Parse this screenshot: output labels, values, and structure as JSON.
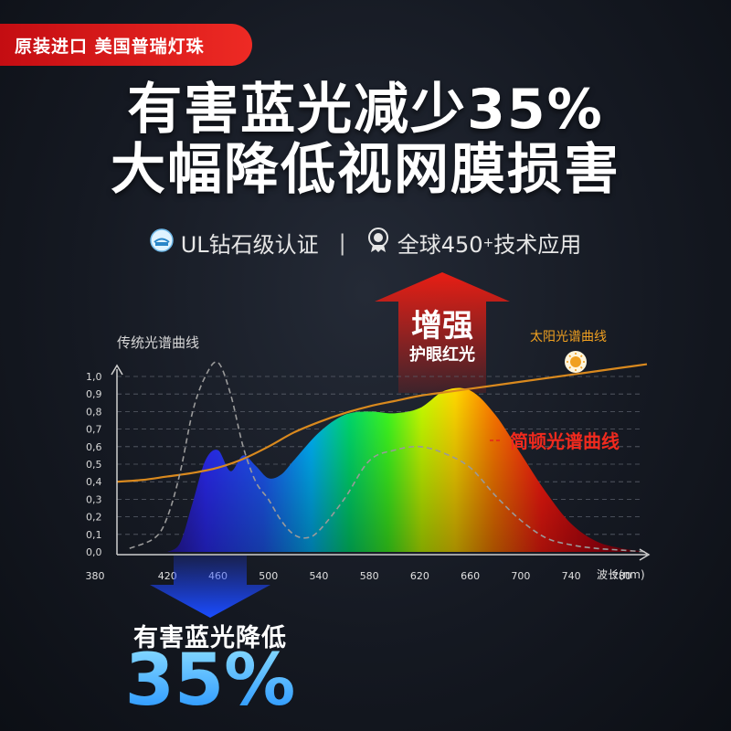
{
  "badge": {
    "text": "原装进口 美国普瑞灯珠"
  },
  "headline": {
    "line1": "有害蓝光减少35%",
    "line2": "大幅降低视网膜损害"
  },
  "certs": {
    "ul": "UL钻石级认证",
    "separator": "|",
    "global_prefix": "全球450",
    "global_sup": "+",
    "global_suffix": "技术应用"
  },
  "colors": {
    "accent_red": "#e8221c",
    "accent_blue": "#1f8fff",
    "sun_orange": "#f0a020"
  },
  "chart_data": {
    "type": "area",
    "xlabel": "波长(nm)",
    "x_ticks": [
      380,
      420,
      460,
      500,
      540,
      580,
      620,
      660,
      700,
      740,
      780
    ],
    "y_ticks": [
      "0,0",
      "0,1",
      "0,2",
      "0,3",
      "0,4",
      "0,5",
      "0,6",
      "0,7",
      "0,8",
      "0,9",
      "1,0"
    ],
    "ylim": [
      0,
      1.0
    ],
    "xlim": [
      380,
      800
    ],
    "series": [
      {
        "name": "简顿光谱曲线",
        "x": [
          420,
          430,
          440,
          450,
          460,
          470,
          480,
          490,
          500,
          510,
          520,
          540,
          560,
          580,
          600,
          620,
          640,
          660,
          680,
          700,
          720,
          740,
          760,
          780,
          800
        ],
        "y": [
          0.0,
          0.05,
          0.28,
          0.52,
          0.58,
          0.46,
          0.55,
          0.49,
          0.42,
          0.44,
          0.52,
          0.68,
          0.78,
          0.8,
          0.79,
          0.82,
          0.92,
          0.92,
          0.78,
          0.56,
          0.34,
          0.16,
          0.06,
          0.02,
          0.0
        ]
      },
      {
        "name": "传统光谱曲线",
        "x": [
          390,
          410,
          420,
          430,
          440,
          450,
          460,
          470,
          480,
          490,
          500,
          510,
          520,
          530,
          540,
          560,
          580,
          600,
          620,
          640,
          660,
          680,
          700,
          720,
          740,
          760,
          780,
          800
        ],
        "y": [
          0.02,
          0.08,
          0.2,
          0.45,
          0.8,
          1.0,
          1.08,
          0.9,
          0.6,
          0.4,
          0.3,
          0.18,
          0.1,
          0.08,
          0.12,
          0.3,
          0.52,
          0.58,
          0.6,
          0.56,
          0.48,
          0.32,
          0.18,
          0.08,
          0.04,
          0.02,
          0.01,
          0.0
        ]
      },
      {
        "name": "太阳光谱曲线",
        "x": [
          380,
          400,
          420,
          440,
          460,
          480,
          500,
          520,
          540,
          560,
          580,
          600,
          620,
          640,
          660,
          680,
          700,
          720,
          740,
          760,
          780,
          800
        ],
        "y": [
          0.4,
          0.41,
          0.43,
          0.45,
          0.48,
          0.53,
          0.6,
          0.68,
          0.74,
          0.79,
          0.83,
          0.86,
          0.89,
          0.91,
          0.93,
          0.95,
          0.97,
          0.99,
          1.01,
          1.03,
          1.05,
          1.07
        ]
      }
    ],
    "labels": {
      "traditional": "传统光谱曲线",
      "sun": "太阳光谱曲线",
      "jd": "简顿光谱曲线"
    },
    "arrow_up": {
      "line1": "增强",
      "line2": "护眼红光"
    },
    "arrow_down": {
      "label": "有害蓝光降低",
      "value": "35%"
    }
  }
}
